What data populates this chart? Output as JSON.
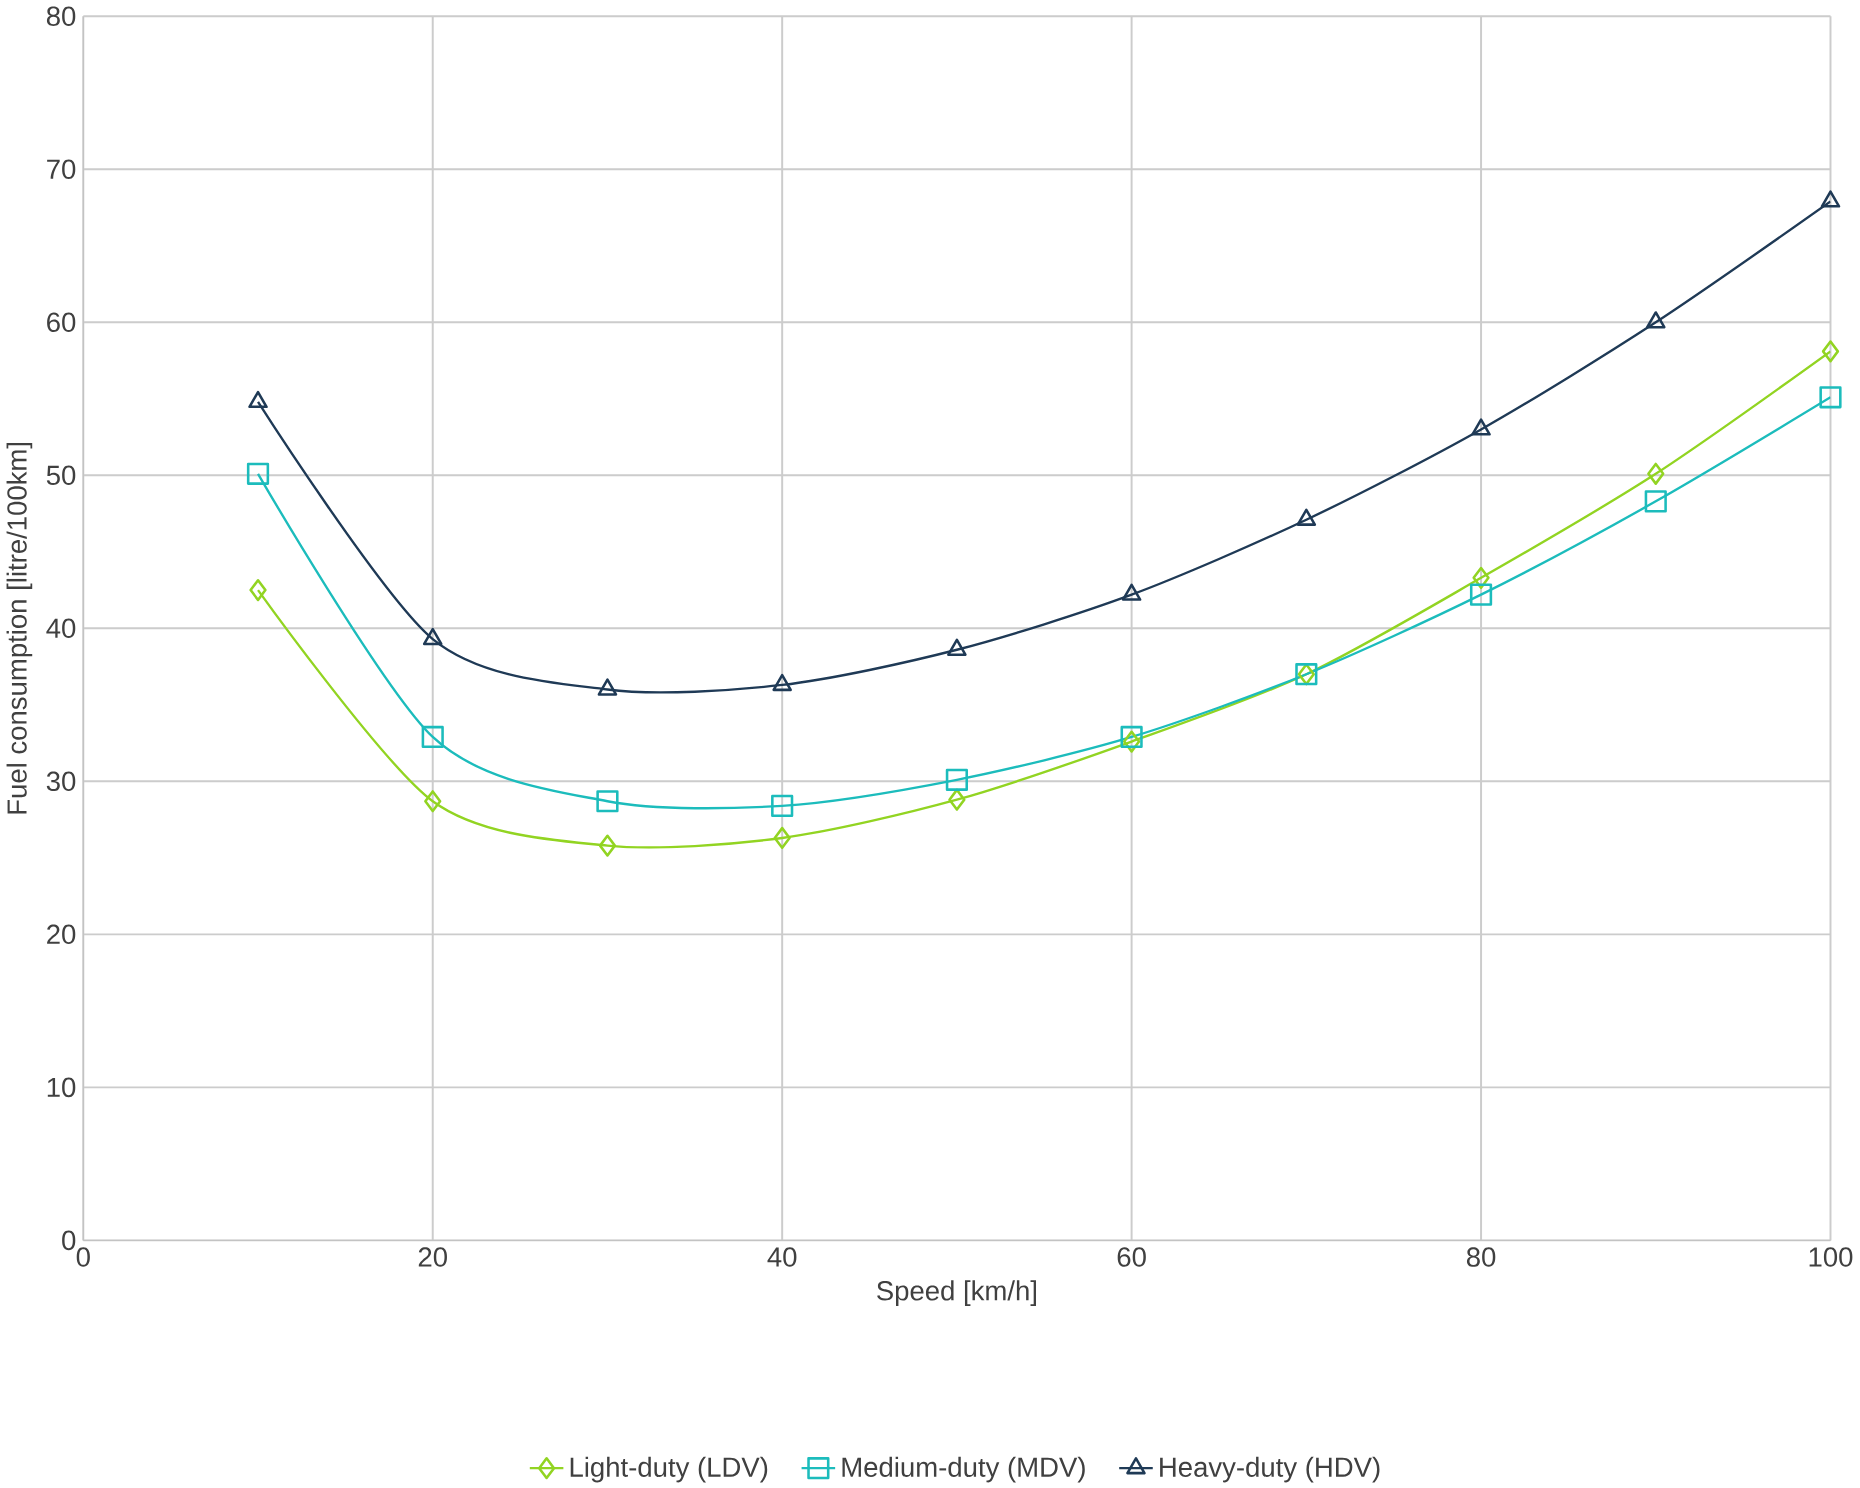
{
  "chart_data": {
    "type": "line",
    "xlabel": "Speed [km/h]",
    "ylabel": "Fuel consumption [litre/100km]",
    "x": [
      10,
      20,
      30,
      40,
      50,
      60,
      70,
      80,
      90,
      100
    ],
    "series": [
      {
        "name": "Light-duty (LDV)",
        "color": "#92d422",
        "marker": "diamond",
        "values": [
          42.5,
          28.7,
          25.8,
          26.3,
          28.8,
          32.6,
          37.0,
          43.3,
          50.1,
          58.1
        ]
      },
      {
        "name": "Medium-duty (MDV)",
        "color": "#1cbcbc",
        "marker": "square",
        "values": [
          50.1,
          32.9,
          28.7,
          28.4,
          30.1,
          32.9,
          37.0,
          42.2,
          48.3,
          55.1
        ]
      },
      {
        "name": "Heavy-duty (HDV)",
        "color": "#1f3a56",
        "marker": "triangle",
        "values": [
          54.8,
          39.3,
          36.0,
          36.3,
          38.6,
          42.2,
          47.1,
          53.0,
          60.0,
          67.9
        ]
      }
    ],
    "xlim": [
      0,
      100
    ],
    "xticks": [
      0,
      20,
      40,
      60,
      80,
      100
    ],
    "ylim": [
      0,
      80
    ],
    "yticks": [
      0,
      10,
      20,
      30,
      40,
      50,
      60,
      70,
      80
    ],
    "grid": true,
    "legend": "bottom",
    "line_style": "solid"
  }
}
